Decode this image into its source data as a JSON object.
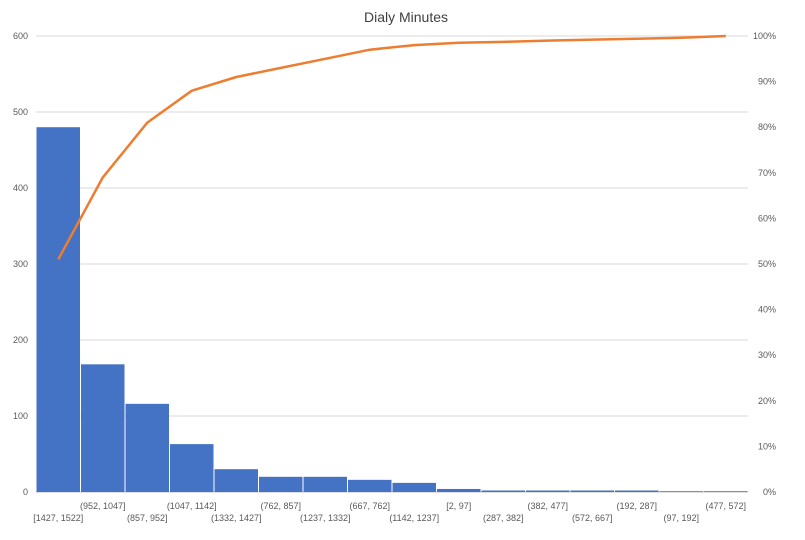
{
  "chart_data": {
    "type": "bar",
    "title": "Dialy Minutes",
    "categories": [
      "[1427, 1522]",
      "(952, 1047]",
      "(857, 952]",
      "(1047, 1142]",
      "(1332, 1427]",
      "(762, 857]",
      "(1237, 1332]",
      "(667, 762]",
      "(1142, 1237]",
      "[2, 97]",
      "(287, 382]",
      "(382, 477]",
      "(572, 667]",
      "(192, 287]",
      "(97, 192]",
      "(477, 572]"
    ],
    "series": [
      {
        "type": "bar",
        "values": [
          480,
          168,
          116,
          63,
          30,
          20,
          20,
          16,
          12,
          4,
          2,
          2,
          2,
          2,
          1,
          1
        ]
      },
      {
        "type": "line",
        "axis": "right",
        "values": [
          51,
          69,
          81,
          88,
          91,
          93,
          95,
          97,
          98,
          98.5,
          98.7,
          99,
          99.2,
          99.4,
          99.6,
          100
        ]
      }
    ],
    "y_left": {
      "min": 0,
      "max": 600,
      "ticks": [
        0,
        100,
        200,
        300,
        400,
        500,
        600
      ]
    },
    "y_right": {
      "min": 0,
      "max": 100,
      "ticks": [
        "0%",
        "10%",
        "20%",
        "30%",
        "40%",
        "50%",
        "60%",
        "70%",
        "80%",
        "90%",
        "100%"
      ]
    },
    "grid": true,
    "legend": "none",
    "colors": {
      "bar": "#4472c4",
      "line": "#ed7d31",
      "grid": "#d9d9d9",
      "text": "#595959",
      "axis": "#bfbfbf"
    }
  }
}
